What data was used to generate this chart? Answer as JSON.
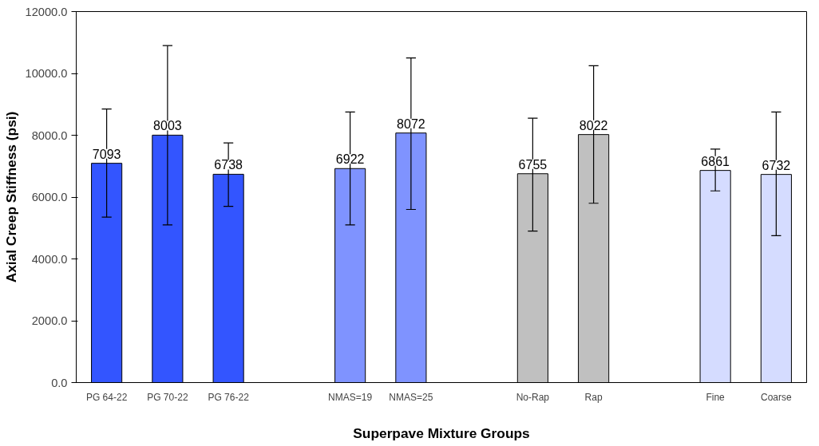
{
  "chart_data": {
    "type": "bar",
    "xlabel": "Superpave Mixture Groups",
    "ylabel": "Axial Creep Stiffness (psi)",
    "categories": [
      "PG 64-22",
      "PG 70-22",
      "PG 76-22",
      null,
      "NMAS=19",
      "NMAS=25",
      null,
      "No-Rap",
      "Rap",
      null,
      "Fine",
      "Coarse"
    ],
    "values": [
      7093,
      8003,
      6738,
      null,
      6922,
      8072,
      null,
      6755,
      8022,
      null,
      6861,
      6732
    ],
    "colors": [
      "#3355ff",
      "#3355ff",
      "#3355ff",
      null,
      "#7f93ff",
      "#7f93ff",
      null,
      "#c0c0c0",
      "#c0c0c0",
      null,
      "#d5dcff",
      "#d5dcff"
    ],
    "errors": [
      [
        5350,
        8850
      ],
      [
        5100,
        10900
      ],
      [
        5700,
        7750
      ],
      null,
      [
        5100,
        8750
      ],
      [
        5600,
        10500
      ],
      null,
      [
        4900,
        8550
      ],
      [
        5800,
        10250
      ],
      null,
      [
        6200,
        7550
      ],
      [
        4750,
        8750
      ]
    ],
    "ylim": [
      0,
      12000
    ],
    "yticks": [
      {
        "value": 0,
        "label": "0.0"
      },
      {
        "value": 2000,
        "label": "2000.0"
      },
      {
        "value": 4000,
        "label": "4000.0"
      },
      {
        "value": 6000,
        "label": "6000.0"
      },
      {
        "value": 8000,
        "label": "8000.0"
      },
      {
        "value": 10000,
        "label": "10000.0"
      },
      {
        "value": 12000,
        "label": "12000.0"
      }
    ],
    "data_labels": true,
    "grid": false
  }
}
